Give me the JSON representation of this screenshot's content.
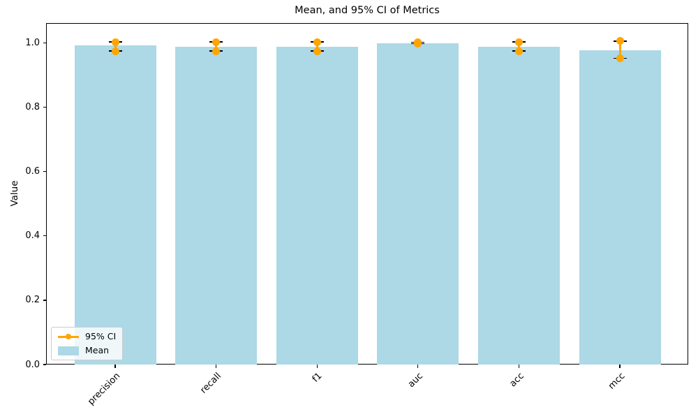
{
  "chart_data": {
    "type": "bar",
    "title": "Mean, and 95% CI of Metrics",
    "xlabel": "",
    "ylabel": "Value",
    "categories": [
      "precision",
      "recall",
      "f1",
      "auc",
      "acc",
      "mcc"
    ],
    "series": [
      {
        "name": "Mean",
        "type": "bar",
        "values": [
          0.992,
          0.989,
          0.988,
          1.0,
          0.989,
          0.978
        ]
      },
      {
        "name": "95% CI",
        "type": "errorbar",
        "low": [
          0.975,
          0.975,
          0.975,
          0.998,
          0.975,
          0.952
        ],
        "high": [
          1.003,
          1.003,
          1.003,
          1.002,
          1.003,
          1.006
        ]
      }
    ],
    "ylim": [
      0,
      1.062
    ],
    "yticks": [
      0.0,
      0.2,
      0.4,
      0.6,
      0.8,
      1.0
    ],
    "ytick_labels": [
      "0.0",
      "0.2",
      "0.4",
      "0.6",
      "0.8",
      "1.0"
    ],
    "xtick_rotation": 45,
    "grid": false,
    "legend": {
      "position": "lower left",
      "entries": [
        "95% CI",
        "Mean"
      ]
    },
    "colors": {
      "bar": "#ADD8E6",
      "ci": "#FFA500",
      "errorbar_caps": "#000000",
      "spine": "#000000",
      "text": "#000000",
      "background": "#FFFFFF"
    }
  }
}
